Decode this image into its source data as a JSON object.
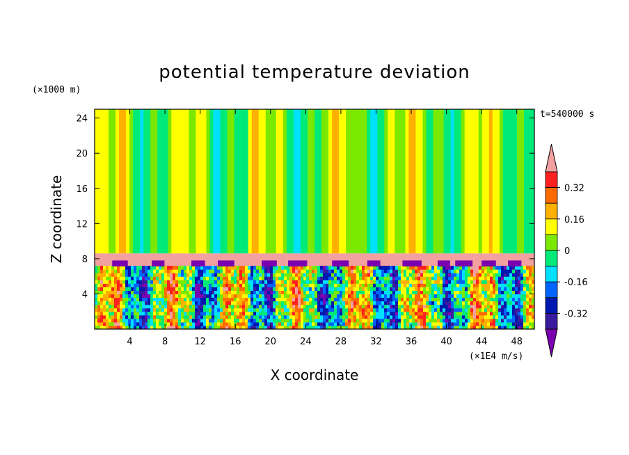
{
  "chart_data": {
    "type": "heatmap",
    "title": "potential temperature deviation",
    "xlabel": "X coordinate",
    "ylabel": "Z coordinate",
    "x_unit": "(×1E4 m/s)",
    "y_unit": "(×1000 m)",
    "time_label": "t=540000 s",
    "xlim": [
      0,
      50
    ],
    "ylim": [
      0,
      25
    ],
    "xticks": [
      4,
      8,
      12,
      16,
      20,
      24,
      28,
      32,
      36,
      40,
      44,
      48
    ],
    "yticks": [
      4,
      8,
      12,
      16,
      20,
      24
    ],
    "colorbar": {
      "levels": [
        -0.48,
        -0.4,
        -0.32,
        -0.24,
        -0.16,
        -0.08,
        0,
        0.08,
        0.16,
        0.24,
        0.32,
        0.4
      ],
      "tick_labels": [
        "0.32",
        "0.16",
        "0",
        "-0.16",
        "-0.32"
      ],
      "tick_values": [
        0.32,
        0.16,
        0,
        -0.16,
        -0.32
      ],
      "colors": [
        "#7a00b0",
        "#3a1a9e",
        "#0018b0",
        "#0064ff",
        "#00e0ff",
        "#00ea7a",
        "#7ae800",
        "#ffff00",
        "#ffb000",
        "#ff6a00",
        "#ff2020",
        "#f2a0a0"
      ]
    },
    "upper_layer": {
      "z_range": [
        8.6,
        25
      ],
      "value_range": [
        -0.16,
        0.24
      ]
    },
    "inversion_layer": {
      "z_range": [
        7.2,
        8.6
      ],
      "value": 0.4
    },
    "lower_layer": {
      "z_range": [
        0,
        7.2
      ],
      "value_range": [
        -0.48,
        0.4
      ]
    }
  },
  "colors": {
    "background": "#ffffff",
    "axis": "#000000",
    "upper_green": "#7ae800",
    "teal": "#00ea7a",
    "cyan": "#00e0ff",
    "yellow": "#ffff00",
    "orange": "#ffb000",
    "pink": "#f2a0a0",
    "purple": "#7a00b0"
  }
}
